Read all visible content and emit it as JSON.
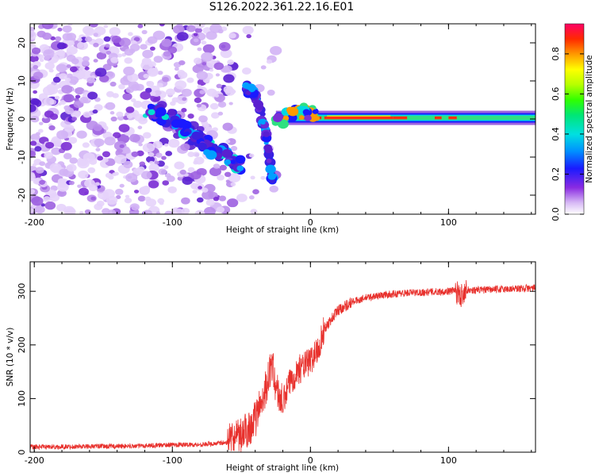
{
  "title": "S126.2022.361.22.16.E01",
  "chart_data": [
    {
      "type": "heatmap",
      "xlabel": "Height of straight line (km)",
      "ylabel": "Frequency (Hz)",
      "xlim": [
        -203,
        163
      ],
      "ylim": [
        -25,
        25
      ],
      "x_ticks": [
        -200,
        -100,
        0,
        100
      ],
      "y_ticks": [
        -20,
        -10,
        0,
        10,
        20
      ],
      "colorbar": {
        "label": "Normalized spectral amplitude",
        "range": [
          0,
          0.95
        ],
        "ticks": [
          0.0,
          0.2,
          0.4,
          0.6,
          0.8
        ],
        "tick_labels": [
          "0.0",
          "0.2",
          "0.4",
          "0.6",
          "0.8"
        ]
      },
      "features": [
        {
          "name": "noise",
          "x_range": [
            -203,
            -55
          ],
          "y_range": [
            -25,
            25
          ],
          "amplitude": 0.12
        },
        {
          "name": "rising_track",
          "points": [
            [
              -120,
              2
            ],
            [
              -100,
              0
            ],
            [
              -80,
              -6
            ],
            [
              -65,
              -9
            ],
            [
              -50,
              -12
            ]
          ],
          "amplitude": 0.35
        },
        {
          "name": "falling_track",
          "points": [
            [
              -48,
              9
            ],
            [
              -40,
              6
            ],
            [
              -33,
              -2
            ],
            [
              -30,
              -10
            ],
            [
              -27,
              -17
            ]
          ],
          "amplitude": 0.3
        },
        {
          "name": "main_line",
          "points": [
            [
              -25,
              0
            ],
            [
              0,
              0.6
            ],
            [
              50,
              0
            ],
            [
              100,
              0.2
            ],
            [
              163,
              0
            ]
          ],
          "amplitude": 0.85
        }
      ]
    },
    {
      "type": "line",
      "xlabel": "Height of straight line (km)",
      "ylabel": "SNR (10 * v/v)",
      "xlim": [
        -203,
        163
      ],
      "ylim": [
        0,
        355
      ],
      "x_ticks": [
        -200,
        -100,
        0,
        100
      ],
      "y_ticks": [
        0,
        100,
        200,
        300
      ],
      "color": "#e8312d",
      "series": [
        {
          "x": [
            -203,
            -180,
            -160,
            -140,
            -120,
            -100,
            -80,
            -60,
            -55,
            -50,
            -45,
            -40,
            -35,
            -30,
            -28,
            -25,
            -20,
            -15,
            -10,
            -8,
            -5,
            0,
            5,
            10,
            20,
            30,
            40,
            50,
            60,
            70,
            80,
            90,
            100,
            105,
            108,
            110,
            112,
            115,
            120,
            130,
            140,
            150,
            163
          ],
          "y": [
            10,
            10,
            11,
            11,
            12,
            14,
            14,
            18,
            22,
            30,
            45,
            60,
            100,
            140,
            170,
            120,
            90,
            130,
            150,
            155,
            160,
            170,
            190,
            230,
            265,
            280,
            288,
            292,
            295,
            297,
            298,
            299,
            300,
            302,
            290,
            295,
            303,
            302,
            302,
            303,
            304,
            305,
            306
          ]
        }
      ]
    }
  ]
}
